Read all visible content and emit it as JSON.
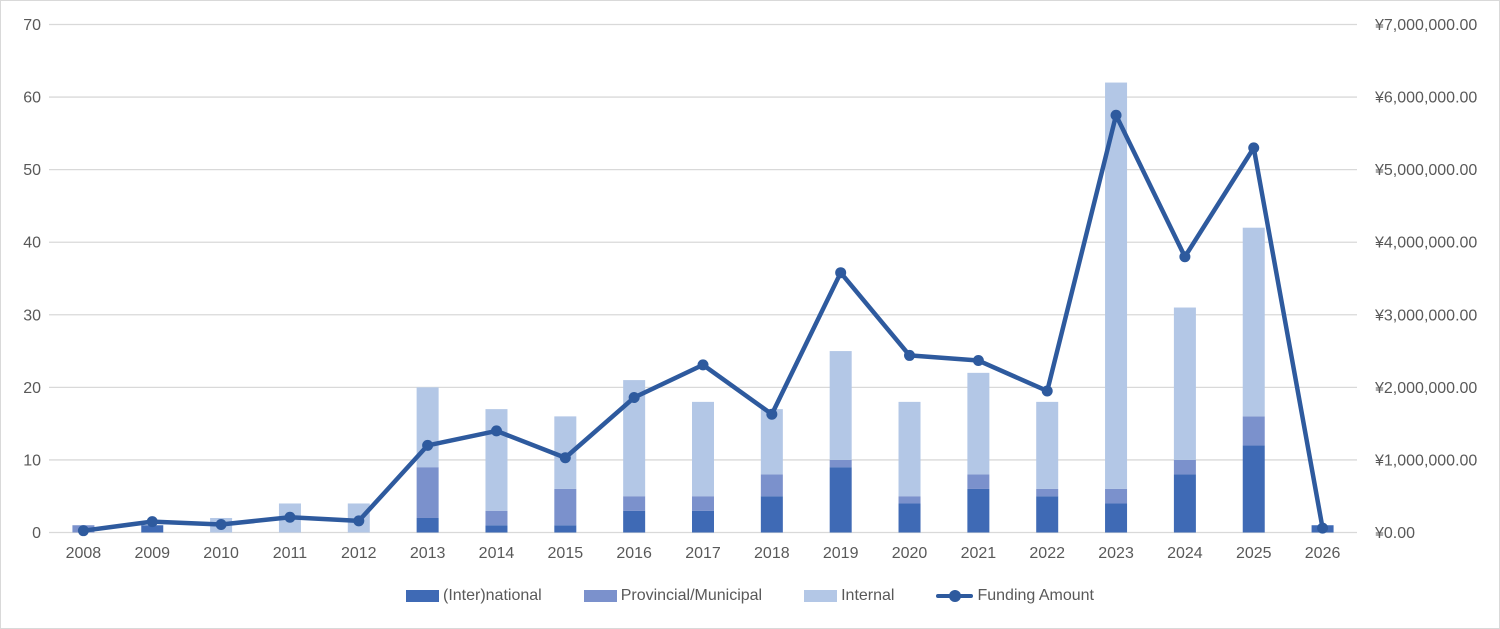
{
  "frame": {
    "background": "#FFFFFF",
    "border_color": "#D9D9D9",
    "gridline_color": "#D9D9D9",
    "tick_text_color": "#595959"
  },
  "chart_data": {
    "type": "bar",
    "subtype": "stacked-bar-with-line-combo",
    "title": "",
    "xlabel": "",
    "ylabel": "",
    "grid": true,
    "legend_position": "bottom",
    "categories": [
      "2008",
      "2009",
      "2010",
      "2011",
      "2012",
      "2013",
      "2014",
      "2015",
      "2016",
      "2017",
      "2018",
      "2019",
      "2020",
      "2021",
      "2022",
      "2023",
      "2024",
      "2025",
      "2026"
    ],
    "series": [
      {
        "name": "(Inter)national",
        "type": "bar",
        "axis": "left",
        "color": "#3F6AB5",
        "values": [
          0,
          1,
          0,
          0,
          0,
          2,
          1,
          1,
          3,
          3,
          5,
          9,
          4,
          6,
          5,
          4,
          8,
          12,
          1
        ]
      },
      {
        "name": "Provincial/Municipal",
        "type": "bar",
        "axis": "left",
        "color": "#7B91CC",
        "values": [
          1,
          0,
          0,
          0,
          0,
          7,
          2,
          5,
          2,
          2,
          3,
          1,
          1,
          2,
          1,
          2,
          2,
          4,
          0
        ]
      },
      {
        "name": "Internal",
        "type": "bar",
        "axis": "left",
        "color": "#B3C7E6",
        "values": [
          0,
          0,
          2,
          4,
          4,
          11,
          14,
          10,
          16,
          13,
          9,
          15,
          13,
          14,
          12,
          56,
          21,
          26,
          0
        ]
      },
      {
        "name": "Funding Amount",
        "type": "line",
        "axis": "right",
        "color": "#2E5A9E",
        "values": [
          25000,
          150000,
          110000,
          210000,
          160000,
          1200000,
          1400000,
          1030000,
          1860000,
          2310000,
          1630000,
          3580000,
          2440000,
          2370000,
          1950000,
          5750000,
          3800000,
          5300000,
          60000
        ]
      }
    ],
    "left_axis": {
      "min": 0,
      "max": 70,
      "step": 10,
      "ticks": [
        "0",
        "10",
        "20",
        "30",
        "40",
        "50",
        "60",
        "70"
      ]
    },
    "right_axis": {
      "min": 0,
      "max": 7000000,
      "step": 1000000,
      "ticks": [
        "¥0.00",
        "¥1,000,000.00",
        "¥2,000,000.00",
        "¥3,000,000.00",
        "¥4,000,000.00",
        "¥5,000,000.00",
        "¥6,000,000.00",
        "¥7,000,000.00"
      ]
    }
  }
}
